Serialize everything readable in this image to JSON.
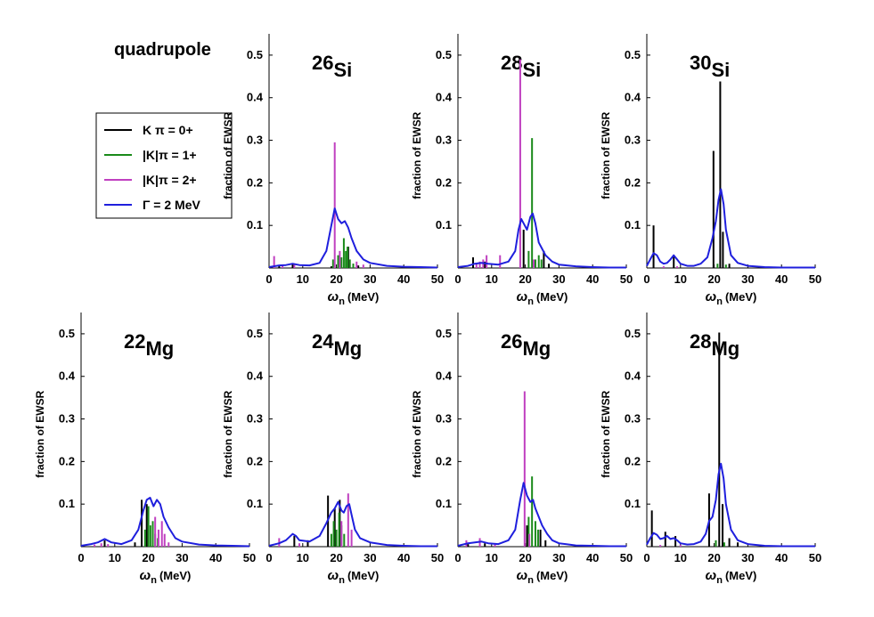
{
  "figure": {
    "title": "quadrupole",
    "legend": {
      "placement": "left",
      "entries": [
        {
          "label": "K π = 0+",
          "color": "#000000"
        },
        {
          "label": "|K|π = 1+",
          "color": "#1a8a1a"
        },
        {
          "label": "|K|π = 2+",
          "color": "#c040c0"
        },
        {
          "label": "Γ = 2 MeV",
          "color": "#1f1fdd"
        }
      ]
    },
    "xlabel": "ω n (MeV)",
    "ylabel": "fraction of EWSR"
  },
  "chart_data": [
    {
      "type": "line",
      "nucleus": "Si",
      "mass": "26",
      "xlim": [
        0,
        50
      ],
      "ylim": [
        0,
        0.55
      ],
      "xticks": [
        0,
        10,
        20,
        30,
        40,
        50
      ],
      "yticks": [
        0.1,
        0.2,
        0.3,
        0.4,
        0.5
      ],
      "series": [
        {
          "color": "#000000",
          "x": [
            3.0,
            7.0,
            18.5,
            23.5,
            25.0,
            26.5
          ],
          "values": [
            0.007,
            0.01,
            0.004,
            0.05,
            0.01,
            0.006
          ]
        },
        {
          "color": "#1a8a1a",
          "x": [
            19.0,
            20.5,
            21.5,
            22.2,
            22.8,
            23.3,
            24.0,
            25.0
          ],
          "values": [
            0.02,
            0.03,
            0.025,
            0.07,
            0.04,
            0.05,
            0.02,
            0.01
          ]
        },
        {
          "color": "#c040c0",
          "x": [
            1.5,
            4.0,
            7.5,
            19.5,
            21.0,
            26.0,
            28.0
          ],
          "values": [
            0.028,
            0.008,
            0.01,
            0.295,
            0.04,
            0.015,
            0.008
          ]
        },
        {
          "color": "#1f1fdd",
          "x": [
            0,
            3,
            5,
            7,
            9,
            12,
            15,
            17,
            18.5,
            19.5,
            20.5,
            21.5,
            22.5,
            23.5,
            24.5,
            26,
            28,
            30,
            35,
            40,
            45,
            50
          ],
          "values": [
            0.002,
            0.006,
            0.007,
            0.01,
            0.007,
            0.006,
            0.012,
            0.04,
            0.1,
            0.14,
            0.115,
            0.105,
            0.11,
            0.095,
            0.07,
            0.04,
            0.02,
            0.012,
            0.005,
            0.003,
            0.002,
            0.001
          ]
        }
      ]
    },
    {
      "type": "line",
      "nucleus": "Si",
      "mass": "28",
      "xlim": [
        0,
        50
      ],
      "ylim": [
        0,
        0.55
      ],
      "xticks": [
        0,
        10,
        20,
        30,
        40,
        50
      ],
      "yticks": [
        0.1,
        0.2,
        0.3,
        0.4,
        0.5
      ],
      "series": [
        {
          "color": "#000000",
          "x": [
            4.5,
            8.0,
            19.5,
            25.5,
            27.0
          ],
          "values": [
            0.025,
            0.015,
            0.09,
            0.04,
            0.01
          ]
        },
        {
          "color": "#1a8a1a",
          "x": [
            21.0,
            22.0,
            23.0,
            24.0,
            24.8
          ],
          "values": [
            0.04,
            0.305,
            0.02,
            0.03,
            0.02
          ]
        },
        {
          "color": "#c040c0",
          "x": [
            5.5,
            6.5,
            7.5,
            8.5,
            12.5,
            18.5,
            22.5
          ],
          "values": [
            0.01,
            0.015,
            0.02,
            0.03,
            0.03,
            0.49,
            0.02
          ]
        },
        {
          "color": "#1f1fdd",
          "x": [
            0,
            3,
            5,
            7,
            9,
            12,
            15,
            17,
            18,
            18.8,
            19.5,
            20.5,
            21.5,
            22.2,
            23,
            24,
            25,
            26,
            28,
            30,
            35,
            40,
            45,
            50
          ],
          "values": [
            0.002,
            0.005,
            0.01,
            0.012,
            0.01,
            0.008,
            0.015,
            0.04,
            0.09,
            0.115,
            0.105,
            0.09,
            0.12,
            0.128,
            0.105,
            0.06,
            0.045,
            0.03,
            0.015,
            0.008,
            0.004,
            0.002,
            0.001,
            0.001
          ]
        }
      ]
    },
    {
      "type": "line",
      "nucleus": "Si",
      "mass": "30",
      "xlim": [
        0,
        50
      ],
      "ylim": [
        0,
        0.55
      ],
      "xticks": [
        0,
        10,
        20,
        30,
        40,
        50
      ],
      "yticks": [
        0.1,
        0.2,
        0.3,
        0.4,
        0.5
      ],
      "series": [
        {
          "color": "#000000",
          "x": [
            2.0,
            8.0,
            19.8,
            21.8,
            22.6,
            24.5
          ],
          "values": [
            0.1,
            0.03,
            0.275,
            0.438,
            0.085,
            0.01
          ]
        },
        {
          "color": "#1a8a1a",
          "x": [
            21.0,
            23.5
          ],
          "values": [
            0.01,
            0.008
          ]
        },
        {
          "color": "#c040c0",
          "x": [
            5.0,
            9.0
          ],
          "values": [
            0.004,
            0.004
          ]
        },
        {
          "color": "#1f1fdd",
          "x": [
            0,
            1,
            2,
            3,
            4,
            5,
            6,
            7,
            8,
            9,
            10,
            12,
            14,
            16,
            18,
            19.5,
            20.5,
            21.3,
            22,
            22.8,
            23.5,
            25,
            27,
            30,
            35,
            40,
            45,
            50
          ],
          "values": [
            0.005,
            0.02,
            0.035,
            0.03,
            0.015,
            0.01,
            0.012,
            0.02,
            0.03,
            0.02,
            0.01,
            0.005,
            0.005,
            0.01,
            0.025,
            0.07,
            0.11,
            0.16,
            0.185,
            0.15,
            0.09,
            0.03,
            0.012,
            0.005,
            0.002,
            0.001,
            0.001,
            0.001
          ]
        }
      ]
    },
    {
      "type": "line",
      "nucleus": "Mg",
      "mass": "22",
      "xlim": [
        0,
        50
      ],
      "ylim": [
        0,
        0.55
      ],
      "xticks": [
        0,
        10,
        20,
        30,
        40,
        50
      ],
      "yticks": [
        0.1,
        0.2,
        0.3,
        0.4,
        0.5
      ],
      "series": [
        {
          "color": "#000000",
          "x": [
            7.0,
            16.0,
            18.0,
            19.5
          ],
          "values": [
            0.015,
            0.01,
            0.11,
            0.1
          ]
        },
        {
          "color": "#1a8a1a",
          "x": [
            19.0,
            20.0,
            20.6,
            21.3,
            22.0,
            22.8
          ],
          "values": [
            0.04,
            0.095,
            0.05,
            0.06,
            0.03,
            0.02
          ]
        },
        {
          "color": "#c040c0",
          "x": [
            4.0,
            6.0,
            8.0,
            22.0,
            23.0,
            24.0,
            24.8,
            26.0
          ],
          "values": [
            0.005,
            0.008,
            0.006,
            0.07,
            0.04,
            0.06,
            0.03,
            0.01
          ]
        },
        {
          "color": "#1f1fdd",
          "x": [
            0,
            3,
            5,
            7,
            9,
            12,
            15,
            17,
            18.5,
            19.5,
            20.5,
            21.5,
            22.5,
            23.5,
            24.5,
            26,
            28,
            30,
            35,
            40,
            45,
            50
          ],
          "values": [
            0.002,
            0.006,
            0.01,
            0.018,
            0.01,
            0.006,
            0.015,
            0.04,
            0.085,
            0.11,
            0.115,
            0.095,
            0.11,
            0.1,
            0.07,
            0.045,
            0.02,
            0.012,
            0.005,
            0.003,
            0.002,
            0.001
          ]
        }
      ]
    },
    {
      "type": "line",
      "nucleus": "Mg",
      "mass": "24",
      "xlim": [
        0,
        50
      ],
      "ylim": [
        0,
        0.55
      ],
      "xticks": [
        0,
        10,
        20,
        30,
        40,
        50
      ],
      "yticks": [
        0.1,
        0.2,
        0.3,
        0.4,
        0.5
      ],
      "series": [
        {
          "color": "#000000",
          "x": [
            7.5,
            11.5,
            17.5,
            19.5,
            21.0
          ],
          "values": [
            0.025,
            0.015,
            0.12,
            0.09,
            0.11
          ]
        },
        {
          "color": "#1a8a1a",
          "x": [
            18.5,
            19.2,
            20.0,
            20.8,
            21.5,
            22.3
          ],
          "values": [
            0.03,
            0.06,
            0.04,
            0.08,
            0.05,
            0.03
          ]
        },
        {
          "color": "#c040c0",
          "x": [
            3.0,
            9.0,
            21.5,
            23.5,
            24.5
          ],
          "values": [
            0.02,
            0.008,
            0.06,
            0.125,
            0.04
          ]
        },
        {
          "color": "#1f1fdd",
          "x": [
            0,
            3,
            5,
            7,
            8,
            9,
            12,
            15,
            17,
            18.5,
            19.5,
            20.5,
            21.5,
            22.2,
            23,
            23.8,
            24.5,
            25.5,
            27,
            30,
            35,
            40,
            45,
            50
          ],
          "values": [
            0.002,
            0.008,
            0.015,
            0.03,
            0.025,
            0.015,
            0.012,
            0.025,
            0.055,
            0.08,
            0.09,
            0.105,
            0.085,
            0.08,
            0.095,
            0.1,
            0.075,
            0.04,
            0.02,
            0.01,
            0.004,
            0.002,
            0.001,
            0.001
          ]
        }
      ]
    },
    {
      "type": "line",
      "nucleus": "Mg",
      "mass": "26",
      "xlim": [
        0,
        50
      ],
      "ylim": [
        0,
        0.55
      ],
      "xticks": [
        0,
        10,
        20,
        30,
        40,
        50
      ],
      "yticks": [
        0.1,
        0.2,
        0.3,
        0.4,
        0.5
      ],
      "series": [
        {
          "color": "#000000",
          "x": [
            3.0,
            8.0,
            20.5,
            24.5,
            26.0
          ],
          "values": [
            0.006,
            0.008,
            0.05,
            0.04,
            0.015
          ]
        },
        {
          "color": "#1a8a1a",
          "x": [
            21.0,
            22.0,
            23.0,
            23.8
          ],
          "values": [
            0.07,
            0.165,
            0.06,
            0.04
          ]
        },
        {
          "color": "#c040c0",
          "x": [
            2.5,
            6.5,
            11.0,
            19.8,
            21.2
          ],
          "values": [
            0.015,
            0.02,
            0.005,
            0.365,
            0.03
          ]
        },
        {
          "color": "#1f1fdd",
          "x": [
            0,
            3,
            5,
            7,
            9,
            12,
            15,
            17,
            18.5,
            19.5,
            20.5,
            21.5,
            22.3,
            23,
            24,
            25,
            26.5,
            28,
            30,
            35,
            40,
            45,
            50
          ],
          "values": [
            0.002,
            0.008,
            0.01,
            0.012,
            0.008,
            0.006,
            0.015,
            0.04,
            0.11,
            0.15,
            0.12,
            0.105,
            0.11,
            0.09,
            0.07,
            0.05,
            0.03,
            0.015,
            0.008,
            0.003,
            0.002,
            0.001,
            0.001
          ]
        }
      ]
    },
    {
      "type": "line",
      "nucleus": "Mg",
      "mass": "28",
      "xlim": [
        0,
        50
      ],
      "ylim": [
        0,
        0.55
      ],
      "xticks": [
        0,
        10,
        20,
        30,
        40,
        50
      ],
      "yticks": [
        0.1,
        0.2,
        0.3,
        0.4,
        0.5
      ],
      "series": [
        {
          "color": "#000000",
          "x": [
            1.5,
            5.5,
            8.5,
            18.5,
            21.5,
            22.5,
            24.5,
            27.0
          ],
          "values": [
            0.085,
            0.035,
            0.025,
            0.125,
            0.503,
            0.1,
            0.02,
            0.01
          ]
        },
        {
          "color": "#1a8a1a",
          "x": [
            20.5,
            23.0
          ],
          "values": [
            0.015,
            0.01
          ]
        },
        {
          "color": "#c040c0",
          "x": [
            4.0,
            10.0
          ],
          "values": [
            0.004,
            0.004
          ]
        },
        {
          "color": "#1f1fdd",
          "x": [
            0,
            1,
            2,
            3,
            4,
            5,
            6,
            7,
            8,
            9,
            10,
            12,
            14,
            16,
            17.5,
            18.5,
            19.5,
            20.5,
            21.3,
            22,
            22.8,
            23.5,
            25,
            27,
            30,
            35,
            40,
            45,
            50
          ],
          "values": [
            0.005,
            0.02,
            0.032,
            0.028,
            0.018,
            0.02,
            0.025,
            0.018,
            0.02,
            0.015,
            0.008,
            0.005,
            0.006,
            0.012,
            0.03,
            0.06,
            0.07,
            0.11,
            0.17,
            0.195,
            0.16,
            0.1,
            0.04,
            0.015,
            0.006,
            0.002,
            0.001,
            0.001,
            0.001
          ]
        }
      ]
    }
  ]
}
